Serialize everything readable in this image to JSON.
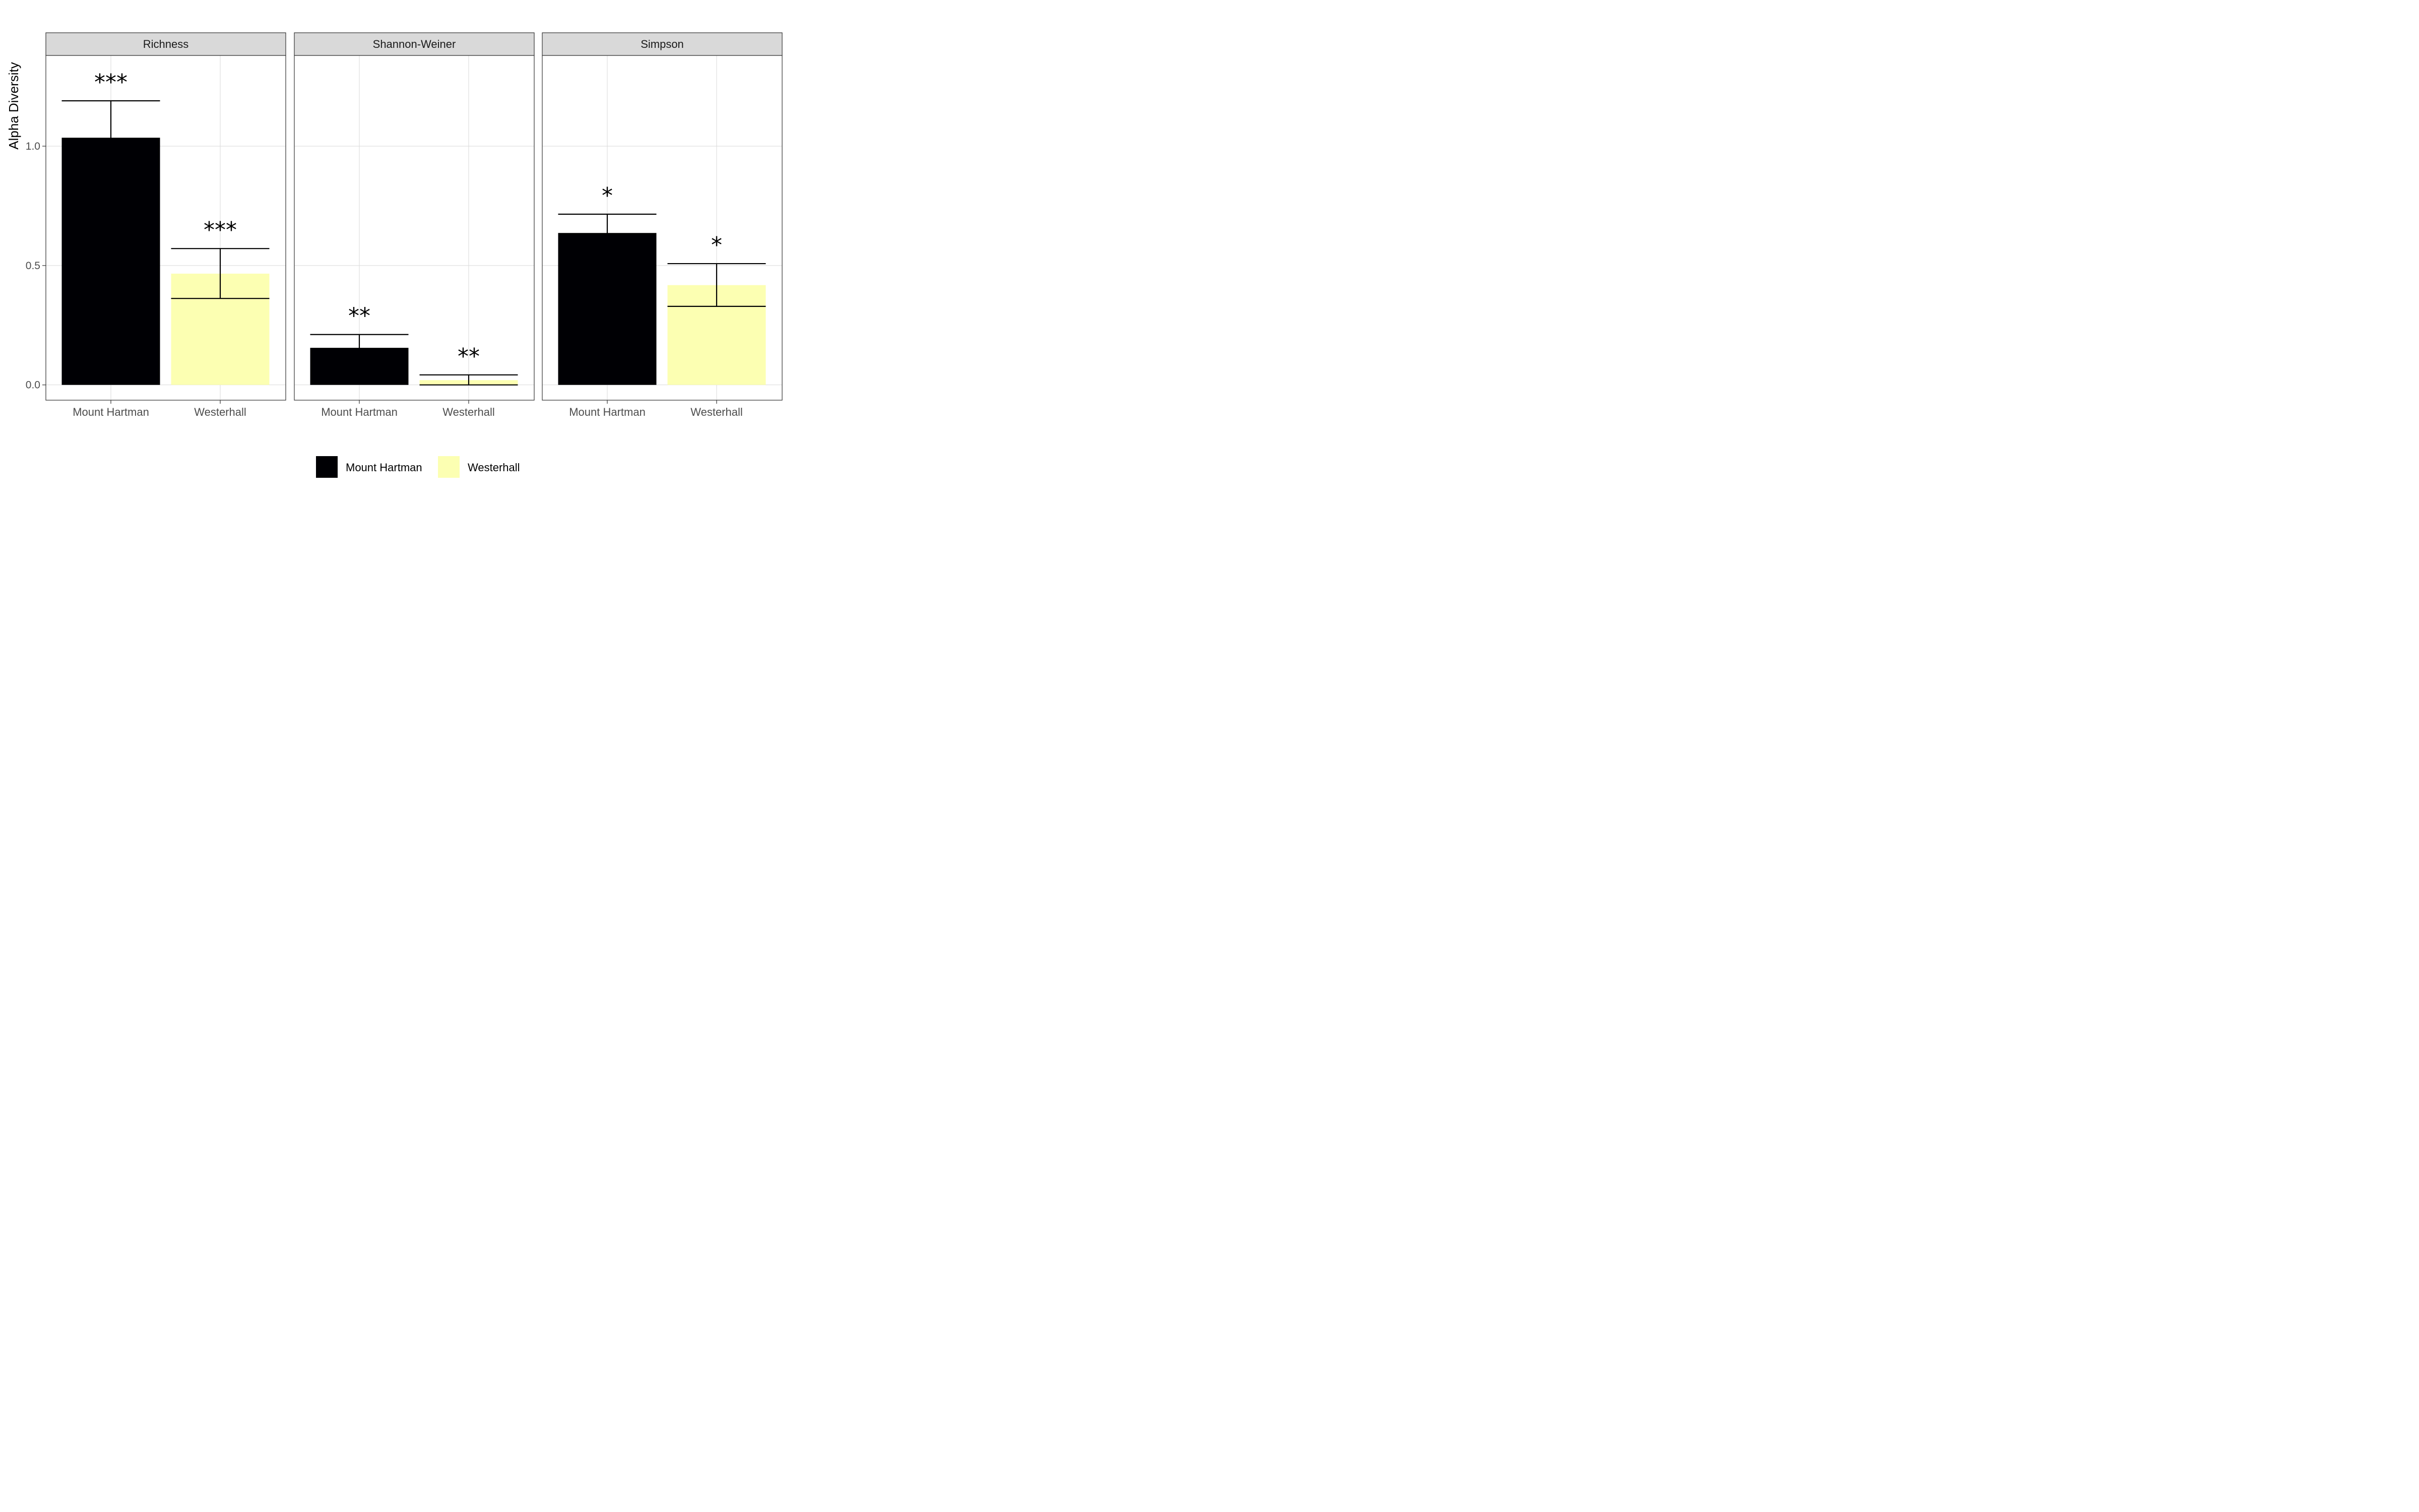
{
  "chart_data": {
    "type": "bar",
    "ylabel": "Alpha Diversity",
    "xlabel": "",
    "ylim": [
      -0.064,
      1.38
    ],
    "yticks": [
      0.0,
      0.5,
      1.0
    ],
    "ytick_labels": [
      "0.0",
      "0.5",
      "1.0"
    ],
    "categories": [
      "Mount Hartman",
      "Westerhall"
    ],
    "colors": {
      "Mount Hartman": "#000004",
      "Westerhall": "#fcffb2"
    },
    "grid": true,
    "legend": {
      "position": "bottom",
      "entries": [
        "Mount Hartman",
        "Westerhall"
      ]
    },
    "panels": [
      {
        "title": "Richness",
        "values": [
          1.033,
          0.466
        ],
        "error_low": [
          1.033,
          0.362
        ],
        "error_high": [
          1.19,
          0.571
        ],
        "significance": [
          "***",
          "***"
        ]
      },
      {
        "title": "Shannon-Weiner",
        "values": [
          0.153,
          0.02
        ],
        "error_low": [
          0.153,
          0.0
        ],
        "error_high": [
          0.211,
          0.042
        ],
        "significance": [
          "**",
          "**"
        ]
      },
      {
        "title": "Simpson",
        "values": [
          0.634,
          0.418
        ],
        "error_low": [
          0.634,
          0.329
        ],
        "error_high": [
          0.715,
          0.508
        ],
        "significance": [
          "*",
          "*"
        ]
      }
    ]
  }
}
